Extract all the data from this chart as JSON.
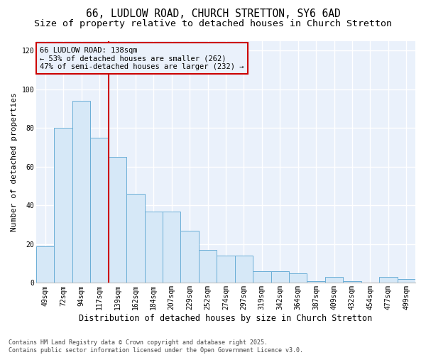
{
  "title1": "66, LUDLOW ROAD, CHURCH STRETTON, SY6 6AD",
  "title2": "Size of property relative to detached houses in Church Stretton",
  "xlabel": "Distribution of detached houses by size in Church Stretton",
  "ylabel": "Number of detached properties",
  "categories": [
    "49sqm",
    "72sqm",
    "94sqm",
    "117sqm",
    "139sqm",
    "162sqm",
    "184sqm",
    "207sqm",
    "229sqm",
    "252sqm",
    "274sqm",
    "297sqm",
    "319sqm",
    "342sqm",
    "364sqm",
    "387sqm",
    "409sqm",
    "432sqm",
    "454sqm",
    "477sqm",
    "499sqm"
  ],
  "values": [
    19,
    80,
    94,
    75,
    65,
    46,
    37,
    37,
    27,
    17,
    14,
    14,
    6,
    6,
    5,
    1,
    3,
    1,
    0,
    3,
    2
  ],
  "bar_color": "#d6e8f7",
  "bar_edge_color": "#6aaed6",
  "vline_index": 4,
  "vline_color": "#cc0000",
  "ylim": [
    0,
    125
  ],
  "yticks": [
    0,
    20,
    40,
    60,
    80,
    100,
    120
  ],
  "annotation_text": "66 LUDLOW ROAD: 138sqm\n← 53% of detached houses are smaller (262)\n47% of semi-detached houses are larger (232) →",
  "annotation_box_color": "#cc0000",
  "footer_text": "Contains HM Land Registry data © Crown copyright and database right 2025.\nContains public sector information licensed under the Open Government Licence v3.0.",
  "bg_color": "#ffffff",
  "plot_bg_color": "#eaf1fb",
  "grid_color": "#ffffff",
  "title1_fontsize": 10.5,
  "title2_fontsize": 9.5,
  "xlabel_fontsize": 8.5,
  "ylabel_fontsize": 8,
  "tick_fontsize": 7,
  "annotation_fontsize": 7.5,
  "footer_fontsize": 6
}
